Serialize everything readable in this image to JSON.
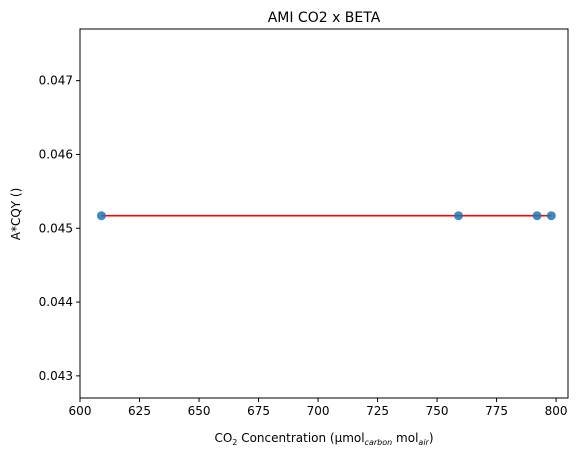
{
  "chart_data": {
    "type": "scatter",
    "title": "AMI CO2 x BETA",
    "xlabel": {
      "prefix": "CO",
      "prefix_sub": "2",
      "middle": " Concentration (µmol",
      "middle_sub": "carbon",
      "unit": " mol",
      "unit_sub": "air",
      "suffix": ")"
    },
    "ylabel": "A*CQY ()",
    "xlim": [
      600,
      805
    ],
    "ylim": [
      0.0427,
      0.0477
    ],
    "xticks": [
      "600",
      "625",
      "650",
      "675",
      "700",
      "725",
      "750",
      "775",
      "800"
    ],
    "yticks": [
      "0.043",
      "0.044",
      "0.045",
      "0.046",
      "0.047"
    ],
    "points": [
      {
        "x": 609,
        "y": 0.04517
      },
      {
        "x": 759,
        "y": 0.04517
      },
      {
        "x": 792,
        "y": 0.04517
      },
      {
        "x": 798,
        "y": 0.04517
      }
    ],
    "fit_line": {
      "x": [
        609,
        798
      ],
      "y": [
        0.04517,
        0.04517
      ]
    },
    "colors": {
      "points": "#1f77b4",
      "fit_line": "#ff0000"
    },
    "grid": false,
    "legend": "none"
  }
}
